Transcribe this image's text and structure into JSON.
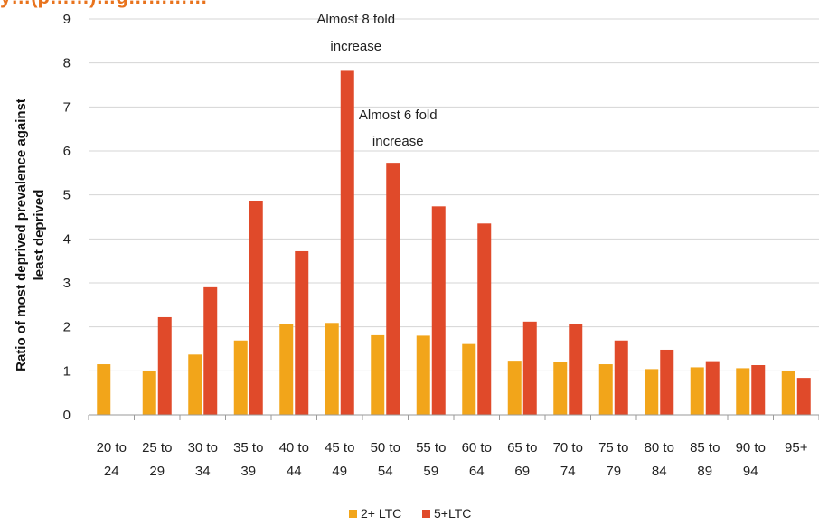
{
  "title_fragment": "y…(p……)…g…………",
  "chart_data": {
    "type": "bar",
    "categories": [
      [
        "20 to",
        "24"
      ],
      [
        "25 to",
        "29"
      ],
      [
        "30 to",
        "34"
      ],
      [
        "35 to",
        "39"
      ],
      [
        "40 to",
        "44"
      ],
      [
        "45 to",
        "49"
      ],
      [
        "50 to",
        "54"
      ],
      [
        "55 to",
        "59"
      ],
      [
        "60 to",
        "64"
      ],
      [
        "65 to",
        "69"
      ],
      [
        "70 to",
        "74"
      ],
      [
        "75 to",
        "79"
      ],
      [
        "80 to",
        "84"
      ],
      [
        "85 to",
        "89"
      ],
      [
        "90 to",
        "94"
      ],
      [
        "95+",
        ""
      ]
    ],
    "series": [
      {
        "name": "2+ LTC",
        "color": "#f2a51a",
        "values": [
          1.15,
          1.0,
          1.37,
          1.69,
          2.07,
          2.09,
          1.81,
          1.8,
          1.61,
          1.23,
          1.2,
          1.15,
          1.04,
          1.08,
          1.06,
          1.0
        ]
      },
      {
        "name": "5+LTC",
        "color": "#e04a2a",
        "values": [
          null,
          2.22,
          2.9,
          4.87,
          3.72,
          7.82,
          5.73,
          4.74,
          4.35,
          2.12,
          2.07,
          1.69,
          1.48,
          1.22,
          1.13,
          0.84
        ]
      }
    ],
    "ylabel": "Ratio of most deprived prevalence against least deprived",
    "ylabel_lines": [
      "Ratio of most deprived prevalence against",
      "least deprived"
    ],
    "ylim": [
      0,
      9
    ],
    "yticks": [
      0,
      1,
      2,
      3,
      4,
      5,
      6,
      7,
      8,
      9
    ],
    "grid": true,
    "legend_position": "bottom-center",
    "annotations": [
      {
        "lines": [
          "Almost 8 fold",
          "increase"
        ],
        "category_index": 5
      },
      {
        "lines": [
          "Almost 6 fold",
          "increase"
        ],
        "category_index": 6
      }
    ]
  }
}
